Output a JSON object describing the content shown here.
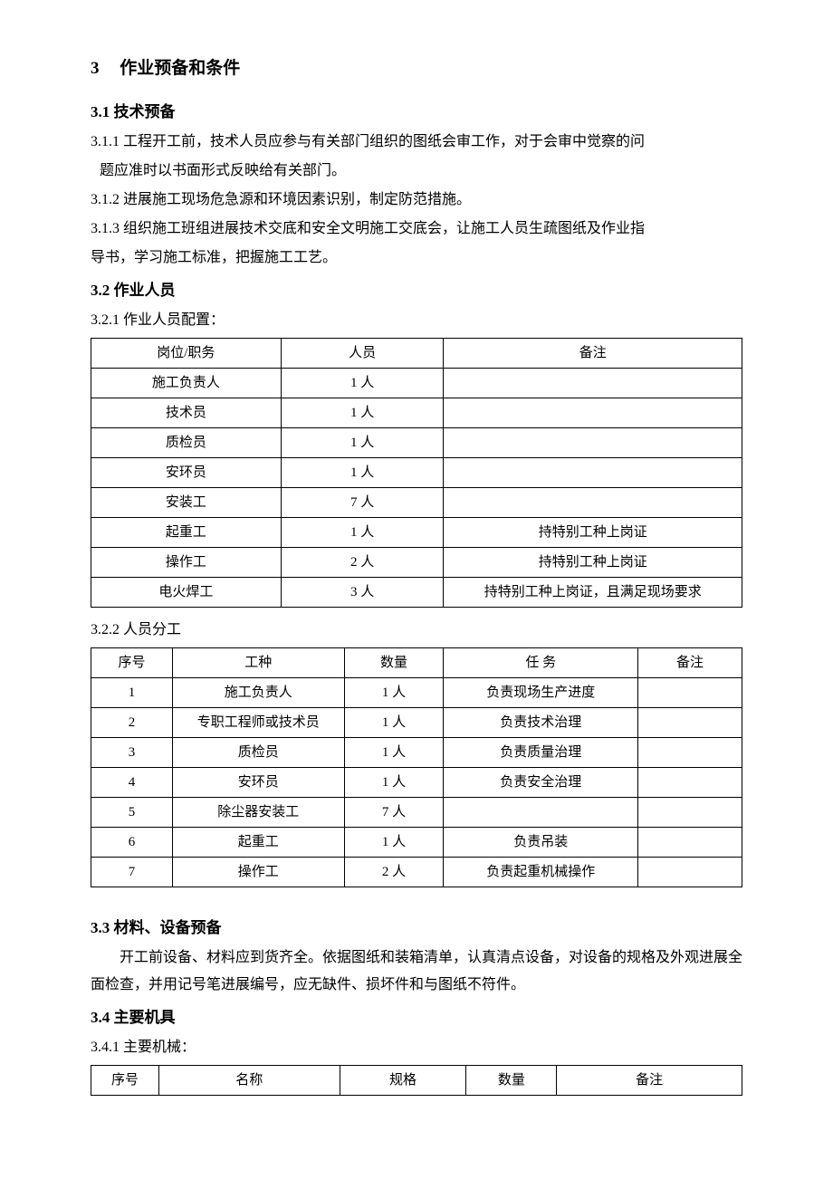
{
  "colors": {
    "text": "#000000",
    "background": "#ffffff",
    "border": "#000000"
  },
  "fonts": {
    "body_family": "SimSun",
    "body_size_pt": 12,
    "heading_size_pt": 14
  },
  "section": {
    "number": "3",
    "title": "作业预备和条件"
  },
  "s31": {
    "heading": "3.1 技术预备",
    "p1a": "3.1.1 工程开工前，技术人员应参与有关部门组织的图纸会审工作，对于会审中觉察的问",
    "p1b": "题应准时以书面形式反映给有关部门。",
    "p2": "3.1.2 进展施工现场危急源和环境因素识别，制定防范措施。",
    "p3a": "3.1.3 组织施工班组进展技术交底和安全文明施工交底会，让施工人员生疏图纸及作业指",
    "p3b": "导书，学习施工标准，把握施工工艺。"
  },
  "s32": {
    "heading": "3.2 作业人员",
    "p1": "3.2.1 作业人员配置：",
    "p2": "3.2.2 人员分工"
  },
  "table1": {
    "type": "table",
    "headers": {
      "c1": "岗位/职务",
      "c2": "人员",
      "c3": "备注"
    },
    "rows": [
      {
        "c1": "施工负责人",
        "c2": "1 人",
        "c3": ""
      },
      {
        "c1": "技术员",
        "c2": "1 人",
        "c3": ""
      },
      {
        "c1": "质检员",
        "c2": "1 人",
        "c3": ""
      },
      {
        "c1": "安环员",
        "c2": "1 人",
        "c3": ""
      },
      {
        "c1": "安装工",
        "c2": "7 人",
        "c3": ""
      },
      {
        "c1": "起重工",
        "c2": "1 人",
        "c3": "持特别工种上岗证"
      },
      {
        "c1": "操作工",
        "c2": "2 人",
        "c3": "持特别工种上岗证"
      },
      {
        "c1": "电火焊工",
        "c2": "3 人",
        "c3": "持特别工种上岗证，且满足现场要求"
      }
    ]
  },
  "table2": {
    "type": "table",
    "headers": {
      "c1": "序号",
      "c2": "工种",
      "c3": "数量",
      "c4": "任  务",
      "c5": "备注"
    },
    "rows": [
      {
        "c1": "1",
        "c2": "施工负责人",
        "c3": "1 人",
        "c4": "负责现场生产进度",
        "c5": ""
      },
      {
        "c1": "2",
        "c2": "专职工程师或技术员",
        "c3": "1 人",
        "c4": "负责技术治理",
        "c5": ""
      },
      {
        "c1": "3",
        "c2": "质检员",
        "c3": "1 人",
        "c4": "负责质量治理",
        "c5": ""
      },
      {
        "c1": "4",
        "c2": "安环员",
        "c3": "1 人",
        "c4": "负责安全治理",
        "c5": ""
      },
      {
        "c1": "5",
        "c2": "除尘器安装工",
        "c3": "7 人",
        "c4": "",
        "c5": ""
      },
      {
        "c1": "6",
        "c2": "起重工",
        "c3": "1 人",
        "c4": "负责吊装",
        "c5": ""
      },
      {
        "c1": "7",
        "c2": "操作工",
        "c3": "2 人",
        "c4": "负责起重机械操作",
        "c5": ""
      }
    ]
  },
  "s33": {
    "heading": "3.3 材料、设备预备",
    "p1": "开工前设备、材料应到货齐全。依据图纸和装箱清单，认真清点设备，对设备的规格及外观进展全面检查，并用记号笔进展编号，应无缺件、损坏件和与图纸不符件。"
  },
  "s34": {
    "heading": "3.4 主要机具",
    "p1": "3.4.1 主要机械："
  },
  "table3": {
    "type": "table",
    "headers": {
      "c1": "序号",
      "c2": "名称",
      "c3": "规格",
      "c4": "数量",
      "c5": "备注"
    }
  }
}
